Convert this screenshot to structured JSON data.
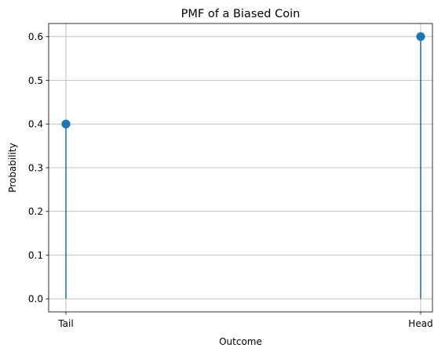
{
  "chart_data": {
    "type": "stem",
    "title": "PMF of a Biased Coin",
    "xlabel": "Outcome",
    "ylabel": "Probability",
    "categories": [
      "Tail",
      "Head"
    ],
    "values": [
      0.4,
      0.6
    ],
    "ylim": [
      -0.03,
      0.63
    ],
    "yticks": [
      0.0,
      0.1,
      0.2,
      0.3,
      0.4,
      0.5,
      0.6
    ],
    "ytick_labels": [
      "0.0",
      "0.1",
      "0.2",
      "0.3",
      "0.4",
      "0.5",
      "0.6"
    ],
    "grid": true,
    "color": "#1f77b4"
  }
}
